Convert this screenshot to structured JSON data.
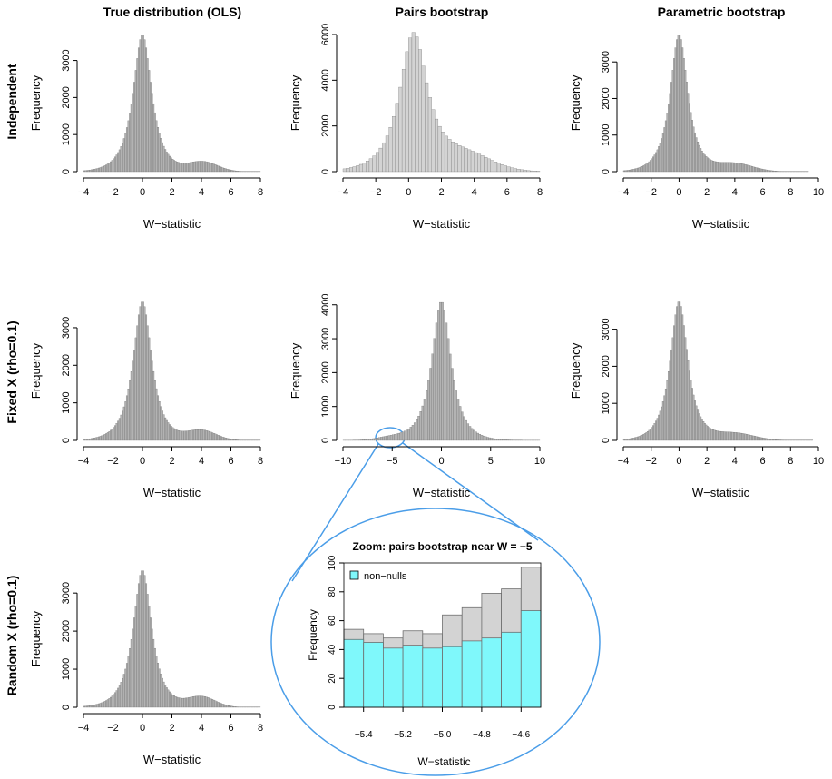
{
  "figure": {
    "column_titles": [
      "True distribution (OLS)",
      "Pairs bootstrap",
      "Parametric bootstrap"
    ],
    "row_titles": [
      "Independent",
      "Fixed X (rho=0.1)",
      "Random X (rho=0.1)"
    ],
    "colors": {
      "bar_fill": "#b3b3b3",
      "bar_fill_light": "#d3d3d3",
      "bar_stroke": "#6e6e6e",
      "nonnull_fill": "#7ff8fb",
      "zoom_outline": "#4a9de8"
    }
  },
  "chart_data": [
    {
      "type": "histogram",
      "id": "independent-ols",
      "xlabel": "W−statistic",
      "ylabel": "Frequency",
      "xlim": [
        -4,
        8
      ],
      "ylim": [
        0,
        3700
      ],
      "xticks": [
        -4,
        -2,
        0,
        2,
        4,
        6,
        8
      ],
      "yticks": [
        0,
        1000,
        2000,
        3000
      ],
      "bin_width": 0.1,
      "shape": {
        "x_range": [
          -4,
          8
        ],
        "peak": 3700,
        "center": 0.0,
        "sd": 0.75,
        "bump_center": 4.1,
        "bump_height": 260,
        "bump_sd": 1.0
      }
    },
    {
      "type": "histogram",
      "id": "independent-pairs",
      "xlabel": "W−statistic",
      "ylabel": "Frequency",
      "xlim": [
        -4,
        8
      ],
      "ylim": [
        0,
        6000
      ],
      "xticks": [
        -4,
        -2,
        0,
        2,
        4,
        6,
        8
      ],
      "yticks": [
        0,
        2000,
        4000,
        6000
      ],
      "bin_width": 0.2,
      "shape": {
        "x_range": [
          -4,
          8
        ],
        "peak": 6000,
        "center": 0.3,
        "sd": 1.0,
        "bump_center": 3.5,
        "bump_height": 700,
        "bump_sd": 1.6
      }
    },
    {
      "type": "histogram",
      "id": "independent-parametric",
      "xlabel": "W−statistic",
      "ylabel": "Frequency",
      "xlim": [
        -4,
        10
      ],
      "ylim": [
        0,
        3750
      ],
      "xticks": [
        -4,
        -2,
        0,
        2,
        4,
        6,
        8,
        10
      ],
      "yticks": [
        0,
        1000,
        2000,
        3000
      ],
      "bin_width": 0.1,
      "shape": {
        "x_range": [
          -4,
          9.3
        ],
        "peak": 3750,
        "center": 0.0,
        "sd": 0.75,
        "bump_center": 4.0,
        "bump_height": 220,
        "bump_sd": 1.3
      }
    },
    {
      "type": "histogram",
      "id": "fixed-ols",
      "xlabel": "W−statistic",
      "ylabel": "Frequency",
      "xlim": [
        -4,
        8
      ],
      "ylim": [
        0,
        3700
      ],
      "xticks": [
        -4,
        -2,
        0,
        2,
        4,
        6,
        8
      ],
      "yticks": [
        0,
        1000,
        2000,
        3000
      ],
      "bin_width": 0.1,
      "shape": {
        "x_range": [
          -4,
          8
        ],
        "peak": 3700,
        "center": 0.0,
        "sd": 0.75,
        "bump_center": 4.0,
        "bump_height": 260,
        "bump_sd": 1.0
      }
    },
    {
      "type": "histogram",
      "id": "fixed-pairs",
      "xlabel": "W−statistic",
      "ylabel": "Frequency",
      "xlim": [
        -10,
        10
      ],
      "ylim": [
        0,
        4100
      ],
      "xticks": [
        -10,
        -5,
        0,
        5,
        10
      ],
      "yticks": [
        0,
        1000,
        2000,
        3000,
        4000
      ],
      "bin_width": 0.2,
      "shape": {
        "x_range": [
          -10,
          10
        ],
        "peak": 4100,
        "center": 0.0,
        "sd": 1.15,
        "bump_center": -5.0,
        "bump_height": 90,
        "bump_sd": 1.5
      }
    },
    {
      "type": "histogram",
      "id": "fixed-parametric",
      "xlabel": "W−statistic",
      "ylabel": "Frequency",
      "xlim": [
        -4,
        10
      ],
      "ylim": [
        0,
        3750
      ],
      "xticks": [
        -4,
        -2,
        0,
        2,
        4,
        6,
        8,
        10
      ],
      "yticks": [
        0,
        1000,
        2000,
        3000
      ],
      "bin_width": 0.1,
      "shape": {
        "x_range": [
          -4,
          9.6
        ],
        "peak": 3750,
        "center": 0.0,
        "sd": 0.75,
        "bump_center": 4.0,
        "bump_height": 190,
        "bump_sd": 1.4
      }
    },
    {
      "type": "histogram",
      "id": "random-ols",
      "xlabel": "W−statistic",
      "ylabel": "Frequency",
      "xlim": [
        -4,
        8
      ],
      "ylim": [
        0,
        3600
      ],
      "xticks": [
        -4,
        -2,
        0,
        2,
        4,
        6,
        8
      ],
      "yticks": [
        0,
        1000,
        2000,
        3000
      ],
      "bin_width": 0.1,
      "shape": {
        "x_range": [
          -4,
          8
        ],
        "peak": 3600,
        "center": 0.0,
        "sd": 0.75,
        "bump_center": 4.0,
        "bump_height": 270,
        "bump_sd": 0.95
      }
    },
    {
      "type": "bar",
      "id": "zoom-pairs",
      "title": "Zoom: pairs bootstrap near W = −5",
      "xlabel": "W−statistic",
      "ylabel": "Frequency",
      "xlim": [
        -5.5,
        -4.5
      ],
      "ylim": [
        0,
        100
      ],
      "xticks": [
        -5.4,
        -5.2,
        -5.0,
        -4.8,
        -4.6
      ],
      "yticks": [
        0,
        20,
        40,
        60,
        80,
        100
      ],
      "bin_edges": [
        -5.5,
        -5.4,
        -5.3,
        -5.2,
        -5.1,
        -5.0,
        -4.9,
        -4.8,
        -4.7,
        -4.6,
        -4.5
      ],
      "series": [
        {
          "name": "total",
          "values": [
            54,
            51,
            48,
            53,
            51,
            64,
            69,
            79,
            82,
            97
          ]
        },
        {
          "name": "non−nulls",
          "values": [
            47,
            45,
            41,
            43,
            41,
            42,
            46,
            48,
            52,
            67
          ]
        }
      ],
      "legend": {
        "position": "top-left",
        "entries": [
          "non−nulls"
        ]
      }
    }
  ]
}
